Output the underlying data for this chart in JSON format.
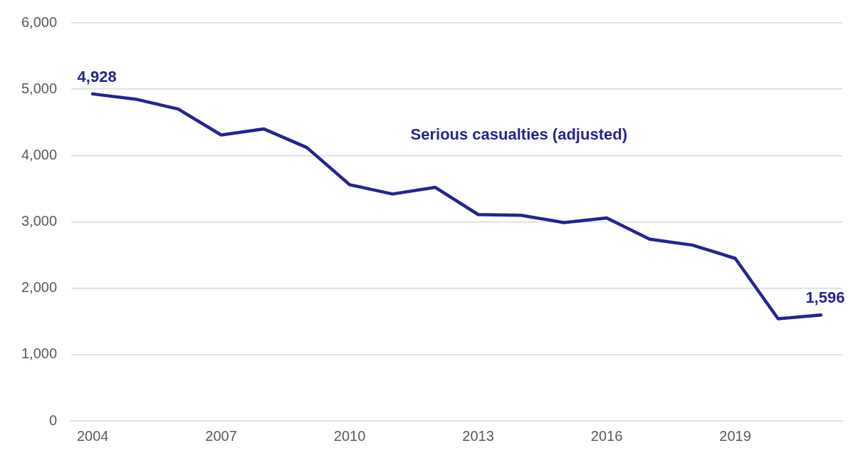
{
  "chart_data": {
    "type": "line",
    "categories": [
      "2004",
      null,
      null,
      "2007",
      null,
      null,
      "2010",
      null,
      null,
      "2013",
      null,
      null,
      "2016",
      null,
      null,
      "2019",
      null,
      null
    ],
    "series": [
      {
        "name": "Serious casualties (adjusted)",
        "color": "#24248f",
        "values": [
          4928,
          4850,
          4700,
          4310,
          4400,
          4120,
          3560,
          3420,
          3520,
          3110,
          3100,
          2990,
          3060,
          2740,
          2650,
          2450,
          1540,
          1596
        ],
        "value_labels": [
          "4,928",
          null,
          null,
          null,
          null,
          null,
          null,
          null,
          null,
          null,
          null,
          null,
          null,
          null,
          null,
          null,
          null,
          "1,596"
        ]
      }
    ],
    "ylim": [
      0,
      6000
    ],
    "yticks": [
      0,
      {
        "value": 1000,
        "label": "1,000"
      },
      {
        "value": 2000,
        "label": "2,000"
      },
      {
        "value": 3000,
        "label": "3,000"
      },
      {
        "value": 4000,
        "label": "4,000"
      },
      {
        "value": 5000,
        "label": "5,000"
      },
      {
        "value": 6000,
        "label": "6,000"
      }
    ],
    "grid": "y",
    "legend": false
  }
}
